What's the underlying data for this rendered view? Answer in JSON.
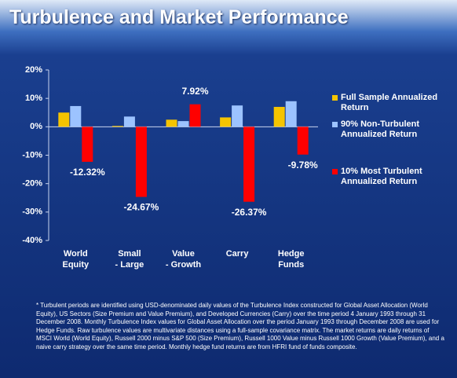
{
  "chart_data": {
    "type": "bar",
    "title": "Turbulence and Market Performance",
    "categories": [
      "World\nEquity",
      "Small\n-  Large",
      "Value\n- Growth",
      "Carry",
      "Hedge\nFunds"
    ],
    "series": [
      {
        "name": "Full Sample Annualized Return",
        "color": "#f5c400",
        "values": [
          5.0,
          0.3,
          2.5,
          3.3,
          7.0
        ]
      },
      {
        "name": "90% Non-Turbulent Annualized Return",
        "color": "#9cc3ff",
        "values": [
          7.3,
          3.6,
          2.0,
          7.5,
          9.0
        ]
      },
      {
        "name": "10% Most Turbulent Annualized Return",
        "color": "#ff0000",
        "values": [
          -12.32,
          -24.67,
          7.92,
          -26.37,
          -9.78
        ],
        "value_labels": [
          "-12.32%",
          "-24.67%",
          "7.92%",
          "-26.37%",
          "-9.78%"
        ]
      }
    ],
    "ylim": [
      -40,
      20
    ],
    "yticks": [
      {
        "value": -40,
        "label": "-40%"
      },
      {
        "value": -30,
        "label": "-30%"
      },
      {
        "value": -20,
        "label": "-20%"
      },
      {
        "value": -10,
        "label": "-10%"
      },
      {
        "value": 0,
        "label": "0%"
      },
      {
        "value": 10,
        "label": "10%"
      },
      {
        "value": 20,
        "label": "20%"
      }
    ],
    "footnote": "* Turbulent periods are identified using USD-denominated daily values of the Turbulence Index constructed for Global Asset Allocation (World Equity), US Sectors (Size Premium and Value Premium), and Developed Currencies (Carry) over the time period 4 January 1993 through 31 December 2008. Monthly Turbulence Index values for Global Asset Allocation over the period January 1993 through December 2008 are used for Hedge Funds. Raw turbulence values are multivariate distances using a full-sample covariance matrix. The market returns are daily returns of MSCI World (World Equity), Russell 2000 minus S&P 500 (Size Premium), Russell 1000 Value minus Russell 1000 Growth (Value Premium), and a naive carry strategy over the same time period. Monthly hedge fund returns are from HFRI fund of funds composite."
  }
}
